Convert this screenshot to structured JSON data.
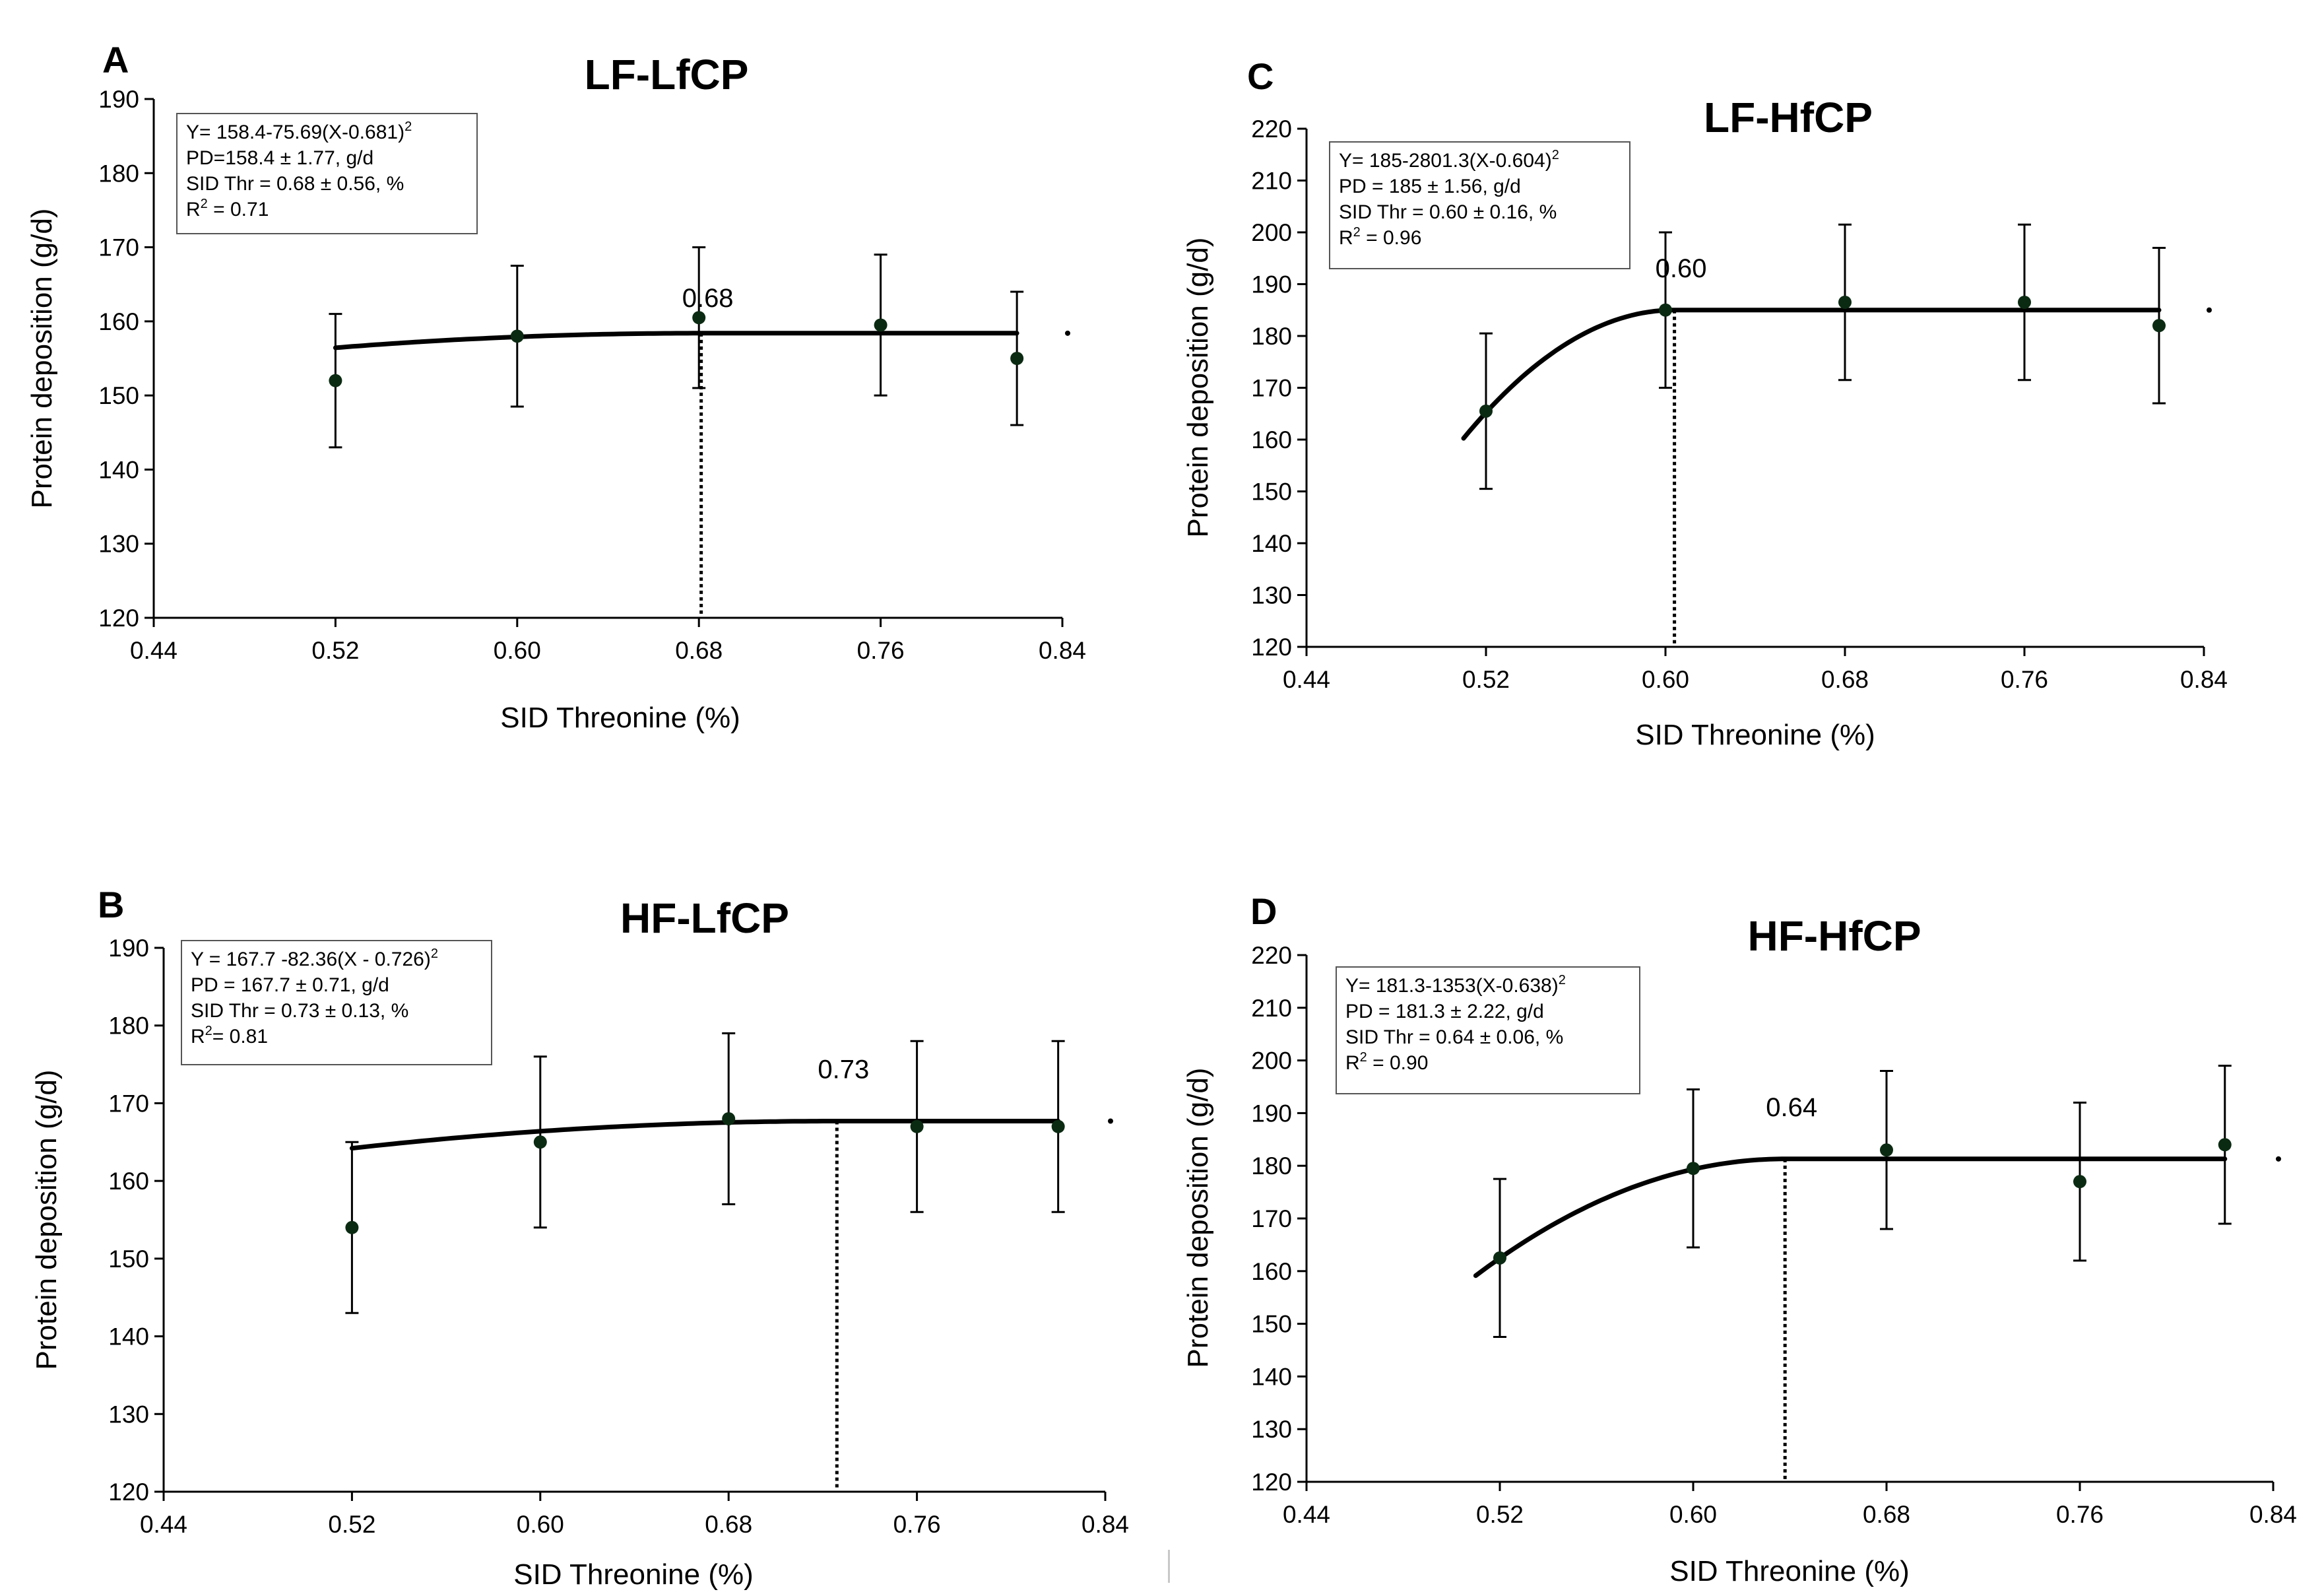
{
  "figure": {
    "separator": ""
  },
  "chart_data": [
    {
      "id": "A",
      "type": "scatter",
      "panel_letter": "A",
      "title": "LF-LfCP",
      "xlabel": "SID Threonine (%)",
      "ylabel": "Protein deposition (g/d)",
      "xlim": [
        0.44,
        0.84
      ],
      "ylim": [
        120,
        190
      ],
      "xticks": [
        0.44,
        0.52,
        0.6,
        0.68,
        0.76,
        0.84
      ],
      "xtick_labels": [
        "0.44",
        "0.52",
        "0.60",
        "0.68",
        "0.76",
        "0.84"
      ],
      "yticks": [
        120,
        130,
        140,
        150,
        160,
        170,
        180,
        190
      ],
      "ytick_labels": [
        "120",
        "130",
        "140",
        "150",
        "160",
        "170",
        "180",
        "190"
      ],
      "points": {
        "x": [
          0.52,
          0.6,
          0.68,
          0.76,
          0.82
        ],
        "y": [
          152,
          158,
          160.5,
          159.5,
          155
        ],
        "err": [
          9,
          9.5,
          9.5,
          9.5,
          9
        ]
      },
      "model": {
        "plateau": 158.4,
        "coef": 75.69,
        "breakpoint": 0.681,
        "x_start": 0.52,
        "x_end": 0.82
      },
      "breakpoint_label": "0.68",
      "stray_marker_x": 0.84,
      "equation": [
        "Y= 158.4-75.69(X-0.681)",
        "PD=158.4 ± 1.77, g/d",
        "SID Thr = 0.68 ± 0.56, %",
        "R",
        " = 0.71"
      ],
      "equation_superscript": [
        "2",
        "2"
      ]
    },
    {
      "id": "B",
      "type": "scatter",
      "panel_letter": "B",
      "title": "HF-LfCP",
      "xlabel": "SID Threonine (%)",
      "ylabel": "Protein deposition (g/d)",
      "xlim": [
        0.44,
        0.84
      ],
      "ylim": [
        120,
        190
      ],
      "xticks": [
        0.44,
        0.52,
        0.6,
        0.68,
        0.76,
        0.84
      ],
      "xtick_labels": [
        "0.44",
        "0.52",
        "0.60",
        "0.68",
        "0.76",
        "0.84"
      ],
      "yticks": [
        120,
        130,
        140,
        150,
        160,
        170,
        180,
        190
      ],
      "ytick_labels": [
        "120",
        "130",
        "140",
        "150",
        "160",
        "170",
        "180",
        "190"
      ],
      "points": {
        "x": [
          0.52,
          0.6,
          0.68,
          0.76,
          0.82
        ],
        "y": [
          154,
          165,
          168,
          167,
          167
        ],
        "err": [
          11,
          11,
          11,
          11,
          11
        ]
      },
      "model": {
        "plateau": 167.7,
        "coef": 82.36,
        "breakpoint": 0.726,
        "x_start": 0.52,
        "x_end": 0.82
      },
      "breakpoint_label": "0.73",
      "stray_marker_x": 0.84,
      "equation": [
        "Y = 167.7 -82.36(X - 0.726)",
        "PD = 167.7 ± 0.71, g/d",
        "SID Thr = 0.73 ± 0.13, %",
        "R",
        "= 0.81"
      ],
      "equation_superscript": [
        "2",
        "2"
      ]
    },
    {
      "id": "C",
      "type": "scatter",
      "panel_letter": "C",
      "title": "LF-HfCP",
      "xlabel": "SID Threonine (%)",
      "ylabel": "Protein deposition (g/d)",
      "xlim": [
        0.44,
        0.84
      ],
      "ylim": [
        120,
        220
      ],
      "xticks": [
        0.44,
        0.52,
        0.6,
        0.68,
        0.76,
        0.84
      ],
      "xtick_labels": [
        "0.44",
        "0.52",
        "0.60",
        "0.68",
        "0.76",
        "0.84"
      ],
      "yticks": [
        120,
        130,
        140,
        150,
        160,
        170,
        180,
        190,
        200,
        210,
        220
      ],
      "ytick_labels": [
        "120",
        "130",
        "140",
        "150",
        "160",
        "170",
        "180",
        "190",
        "200",
        "210",
        "220"
      ],
      "points": {
        "x": [
          0.52,
          0.6,
          0.68,
          0.76,
          0.82
        ],
        "y": [
          165.5,
          185,
          186.5,
          186.5,
          182
        ],
        "err": [
          15,
          15,
          15,
          15,
          15
        ]
      },
      "model": {
        "plateau": 185,
        "coef": 2801.3,
        "breakpoint": 0.604,
        "x_start": 0.51,
        "x_end": 0.82
      },
      "breakpoint_label": "0.60",
      "stray_marker_x": 0.84,
      "equation": [
        "Y= 185-2801.3(X-0.604)",
        "PD = 185 ± 1.56, g/d",
        "SID Thr = 0.60 ± 0.16, %",
        "R",
        " = 0.96"
      ],
      "equation_superscript": [
        "2",
        "2"
      ]
    },
    {
      "id": "D",
      "type": "scatter",
      "panel_letter": "D",
      "title": "HF-HfCP",
      "xlabel": "SID Threonine (%)",
      "ylabel": "Protein deposition (g/d)",
      "xlim": [
        0.44,
        0.84
      ],
      "ylim": [
        120,
        220
      ],
      "xticks": [
        0.44,
        0.52,
        0.6,
        0.68,
        0.76,
        0.84
      ],
      "xtick_labels": [
        "0.44",
        "0.52",
        "0.60",
        "0.68",
        "0.76",
        "0.84"
      ],
      "yticks": [
        120,
        130,
        140,
        150,
        160,
        170,
        180,
        190,
        200,
        210,
        220
      ],
      "ytick_labels": [
        "120",
        "130",
        "140",
        "150",
        "160",
        "170",
        "180",
        "190",
        "200",
        "210",
        "220"
      ],
      "points": {
        "x": [
          0.52,
          0.6,
          0.68,
          0.76,
          0.82
        ],
        "y": [
          162.5,
          179.5,
          183,
          177,
          184
        ],
        "err": [
          15,
          15,
          15,
          15,
          15
        ]
      },
      "model": {
        "plateau": 181.3,
        "coef": 1353,
        "breakpoint": 0.638,
        "x_start": 0.51,
        "x_end": 0.82
      },
      "breakpoint_label": "0.64",
      "stray_marker_x": 0.84,
      "equation": [
        "Y= 181.3-1353(X-0.638)",
        "PD = 181.3 ± 2.22, g/d",
        "SID Thr = 0.64 ± 0.06, %",
        "R",
        " = 0.90"
      ],
      "equation_superscript": [
        "2",
        "2"
      ]
    }
  ]
}
